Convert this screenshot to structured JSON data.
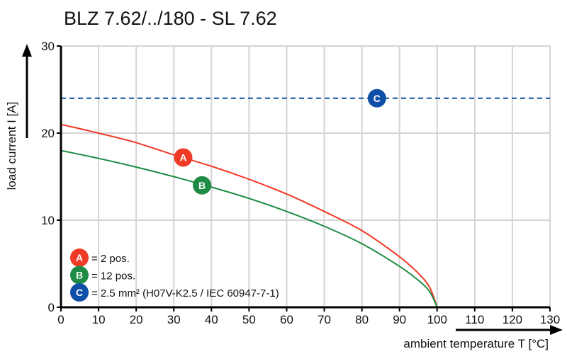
{
  "chart_data": {
    "type": "line",
    "title": "BLZ 7.62/../180 - SL 7.62",
    "xlabel": "ambient temperature T [°C]",
    "ylabel": "load current I [A]",
    "xlim": [
      0,
      130
    ],
    "ylim": [
      0,
      30
    ],
    "xticks": [
      "0",
      "10",
      "20",
      "30",
      "40",
      "50",
      "60",
      "70",
      "80",
      "90",
      "100",
      "110",
      "120",
      "130"
    ],
    "yticks": [
      "0",
      "10",
      "20",
      "30"
    ],
    "grid": true,
    "legend_position": "bottom-left",
    "series": [
      {
        "name": "A",
        "legend": "= 2 pos.",
        "color": "#f03a26",
        "style": "solid",
        "marker_x": 32.5,
        "marker_y": 17.2,
        "x": [
          0,
          10,
          20,
          30,
          40,
          50,
          60,
          70,
          80,
          90,
          95,
          98,
          100
        ],
        "y": [
          21,
          20,
          18.9,
          17.5,
          16.2,
          14.7,
          13,
          11,
          8.8,
          5.8,
          3.9,
          2.3,
          0
        ]
      },
      {
        "name": "B",
        "legend": "= 12 pos.",
        "color": "#1e8c44",
        "style": "solid",
        "marker_x": 37.5,
        "marker_y": 14,
        "x": [
          0,
          10,
          20,
          30,
          40,
          50,
          60,
          70,
          80,
          90,
          95,
          98,
          100
        ],
        "y": [
          18,
          17.1,
          16.1,
          15,
          13.8,
          12.5,
          11,
          9.3,
          7.3,
          4.7,
          3.1,
          1.8,
          0
        ]
      },
      {
        "name": "C",
        "legend": "= 2.5 mm² (H07V-K2.5 / IEC 60947-7-1)",
        "color": "#0f4fa8",
        "style": "dashed",
        "marker_x": 84,
        "marker_y": 24,
        "x": [
          0,
          130
        ],
        "y": [
          24,
          24
        ]
      }
    ]
  }
}
